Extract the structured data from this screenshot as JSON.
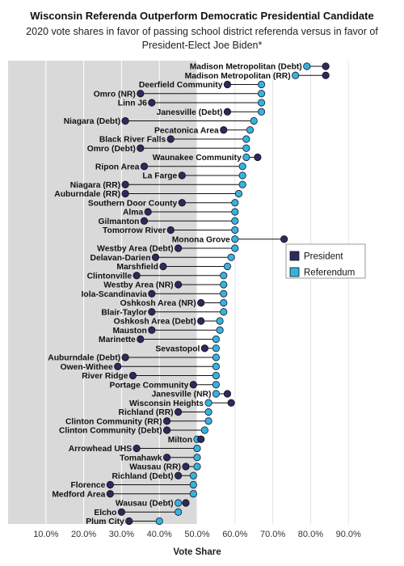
{
  "chart_data": {
    "type": "dot",
    "title": "Wisconsin Referenda Outperform Democratic Presidential Candidate",
    "subtitle": "2020 vote shares in favor of passing school district referenda versus in favor of President-Elect Joe Biden*",
    "xlabel": "Vote Share",
    "xlim": [
      0.0,
      1.0
    ],
    "x_ticks": [
      "10.0%",
      "20.0%",
      "30.0%",
      "40.0%",
      "50.0%",
      "60.0%",
      "70.0%",
      "80.0%",
      "90.0%"
    ],
    "shaded_region": [
      0.0,
      0.5
    ],
    "legend_position": "right",
    "series": [
      {
        "name": "President",
        "color": "#2e2a5e"
      },
      {
        "name": "Referendum",
        "color": "#35b3dd"
      }
    ],
    "categories": [
      "Madison Metropolitan (Debt)",
      "Madison Metropolitan (RR)",
      "Deerfield Community",
      "Omro (NR)",
      "Linn J6",
      "Janesville (Debt)",
      "Niagara (Debt)",
      "Pecatonica Area",
      "Black River Falls",
      "Omro (Debt)",
      "Waunakee Community",
      "Ripon Area",
      "La Farge",
      "Niagara (RR)",
      "Auburndale (RR)",
      "Southern Door County",
      "Alma",
      "Gilmanton",
      "Tomorrow River",
      "Monona Grove",
      "Westby Area (Debt)",
      "Delavan-Darien",
      "Marshfield",
      "Clintonville",
      "Westby Area (NR)",
      "Iola-Scandinavia",
      "Oshkosh Area (NR)",
      "Blair-Taylor",
      "Oshkosh Area (Debt)",
      "Mauston",
      "Marinette",
      "Sevastopol",
      "Auburndale (Debt)",
      "Owen-Withee",
      "River Ridge",
      "Portage Community",
      "Janesville (NR)",
      "Wisconsin Heights",
      "Richland (RR)",
      "Clinton Community (RR)",
      "Clinton Community (Debt)",
      "Milton",
      "Arrowhead UHS",
      "Tomahawk",
      "Wausau (RR)",
      "Richland (Debt)",
      "Florence",
      "Medford Area",
      "Wausau (Debt)",
      "Elcho",
      "Plum City"
    ],
    "president": [
      84,
      84,
      58,
      35,
      38,
      58,
      31,
      57,
      43,
      35,
      66,
      36,
      46,
      31,
      31,
      46,
      37,
      36,
      43,
      73,
      45,
      39,
      41,
      34,
      45,
      38,
      51,
      38,
      51,
      38,
      35,
      52,
      31,
      29,
      33,
      49,
      58,
      59,
      45,
      42,
      42,
      51,
      34,
      42,
      47,
      45,
      27,
      27,
      47,
      30,
      32
    ],
    "referendum": [
      79,
      76,
      67,
      67,
      67,
      67,
      65,
      64,
      63,
      63,
      63,
      62,
      62,
      62,
      61,
      60,
      60,
      60,
      60,
      60,
      60,
      59,
      58,
      57,
      57,
      57,
      57,
      57,
      56,
      56,
      55,
      55,
      55,
      55,
      55,
      55,
      55,
      53,
      53,
      53,
      52,
      50,
      50,
      50,
      50,
      49,
      49,
      49,
      45,
      45,
      40
    ]
  }
}
